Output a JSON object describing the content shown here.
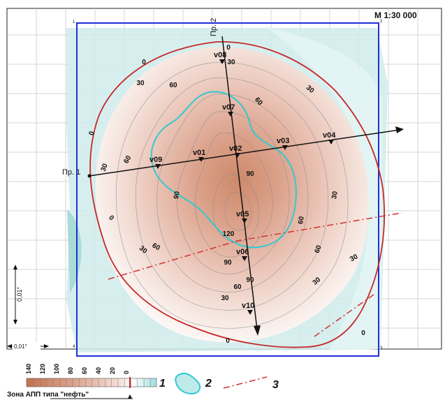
{
  "scale_label": "М 1:30 000",
  "corner_numbers": {
    "top_left": "1",
    "top_right": "2",
    "bottom_left": "4",
    "bottom_right": "3"
  },
  "profiles": {
    "p1": {
      "label": "Пр. 1"
    },
    "p2": {
      "label": "Пр. 2"
    }
  },
  "wells": [
    {
      "id": "v01",
      "label": "v01"
    },
    {
      "id": "v02",
      "label": "v02"
    },
    {
      "id": "v03",
      "label": "v03"
    },
    {
      "id": "v04",
      "label": "v04"
    },
    {
      "id": "v05",
      "label": "v05"
    },
    {
      "id": "v06",
      "label": "v06"
    },
    {
      "id": "v07",
      "label": "v07"
    },
    {
      "id": "v08",
      "label": "v08"
    },
    {
      "id": "v09",
      "label": "v09"
    },
    {
      "id": "v10",
      "label": "v10"
    }
  ],
  "contour_labels": [
    "0",
    "0",
    "0",
    "0",
    "0",
    "0",
    "30",
    "30",
    "30",
    "30",
    "30",
    "30",
    "30",
    "30",
    "30",
    "60",
    "60",
    "60",
    "60",
    "60",
    "60",
    "60",
    "90",
    "90",
    "90",
    "90",
    "120"
  ],
  "scale_bars": {
    "vertical": "0,01°",
    "horizontal": "0,01°"
  },
  "legend": {
    "ticks": [
      "140",
      "120",
      "100",
      "80",
      "60",
      "40",
      "20",
      "0"
    ],
    "item1": "1",
    "item2": "2",
    "item3": "3",
    "caption": "Зона АПП типа \"нефть\""
  },
  "colors": {
    "zero_contour": "#c62828",
    "block_border": "#1f2fd6",
    "anomaly_outline": "#33c8d2",
    "fault": "#d32f2f",
    "anomaly_core": "#d98b6a",
    "background_low": "#bfe6e4"
  }
}
